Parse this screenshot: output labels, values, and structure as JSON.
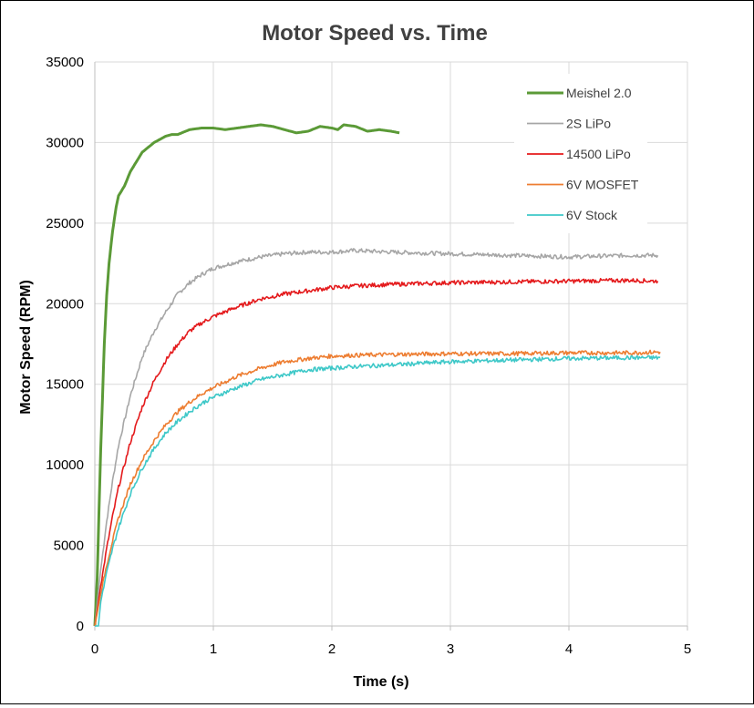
{
  "chart_data": {
    "type": "line",
    "title": "Motor Speed vs. Time",
    "xlabel": "Time (s)",
    "ylabel": "Motor Speed (RPM)",
    "xlim": [
      0,
      5
    ],
    "ylim": [
      0,
      35000
    ],
    "xticks": [
      0,
      1,
      2,
      3,
      4,
      5
    ],
    "yticks": [
      0,
      5000,
      10000,
      15000,
      20000,
      25000,
      30000,
      35000
    ],
    "grid": true,
    "legend_position": "top-right",
    "series": [
      {
        "name": "Meishel 2.0",
        "color": "#5b9a37",
        "x": [
          0,
          0.02,
          0.05,
          0.08,
          0.1,
          0.12,
          0.15,
          0.18,
          0.2,
          0.25,
          0.3,
          0.4,
          0.5,
          0.6,
          0.65,
          0.7,
          0.8,
          0.9,
          1.0,
          1.1,
          1.2,
          1.3,
          1.4,
          1.5,
          1.6,
          1.7,
          1.8,
          1.9,
          2.0,
          2.05,
          2.1,
          2.2,
          2.3,
          2.4,
          2.5,
          2.57
        ],
        "y": [
          0,
          3000,
          11000,
          17500,
          20500,
          22500,
          24500,
          26000,
          26700,
          27300,
          28200,
          29400,
          30000,
          30400,
          30500,
          30500,
          30800,
          30900,
          30900,
          30800,
          30900,
          31000,
          31100,
          31000,
          30800,
          30600,
          30700,
          31000,
          30900,
          30800,
          31100,
          31000,
          30700,
          30800,
          30700,
          30600
        ]
      },
      {
        "name": "2S LiPo",
        "color": "#a6a6a6",
        "x": [
          0,
          0.05,
          0.1,
          0.15,
          0.2,
          0.3,
          0.4,
          0.5,
          0.6,
          0.7,
          0.8,
          0.9,
          1.0,
          1.2,
          1.4,
          1.6,
          1.8,
          2.0,
          2.2,
          2.5,
          3.0,
          3.5,
          4.0,
          4.5,
          4.75
        ],
        "y": [
          0,
          3500,
          6500,
          9000,
          11200,
          14300,
          16700,
          18300,
          19500,
          20600,
          21300,
          21800,
          22200,
          22600,
          22900,
          23100,
          23200,
          23200,
          23300,
          23200,
          23100,
          23000,
          22900,
          23000,
          23000
        ]
      },
      {
        "name": "14500 LiPo",
        "color": "#e41a1c",
        "x": [
          0,
          0.05,
          0.1,
          0.15,
          0.2,
          0.3,
          0.4,
          0.5,
          0.6,
          0.7,
          0.8,
          0.9,
          1.0,
          1.2,
          1.4,
          1.6,
          1.8,
          2.0,
          2.2,
          2.5,
          3.0,
          3.5,
          4.0,
          4.5,
          4.75
        ],
        "y": [
          0,
          2500,
          4800,
          6800,
          8600,
          11400,
          13600,
          15200,
          16500,
          17500,
          18300,
          18800,
          19200,
          19800,
          20300,
          20600,
          20800,
          21000,
          21100,
          21200,
          21300,
          21350,
          21400,
          21450,
          21400
        ]
      },
      {
        "name": "6V MOSFET",
        "color": "#ed7d31",
        "x": [
          0,
          0.05,
          0.1,
          0.15,
          0.2,
          0.3,
          0.4,
          0.5,
          0.6,
          0.7,
          0.8,
          0.9,
          1.0,
          1.2,
          1.4,
          1.6,
          1.8,
          2.0,
          2.2,
          2.5,
          3.0,
          3.5,
          4.0,
          4.5,
          4.77
        ],
        "y": [
          0,
          2000,
          3800,
          5300,
          6700,
          8800,
          10300,
          11500,
          12500,
          13300,
          13900,
          14400,
          14800,
          15500,
          16000,
          16400,
          16600,
          16750,
          16800,
          16850,
          16900,
          16900,
          16950,
          16950,
          17000
        ]
      },
      {
        "name": "6V Stock",
        "color": "#3ec8c8",
        "x": [
          0,
          0.03,
          0.05,
          0.1,
          0.15,
          0.2,
          0.3,
          0.4,
          0.5,
          0.6,
          0.7,
          0.8,
          0.9,
          1.0,
          1.2,
          1.4,
          1.6,
          1.8,
          2.0,
          2.2,
          2.5,
          3.0,
          3.5,
          4.0,
          4.5,
          4.77
        ],
        "y": [
          0,
          0,
          1500,
          3300,
          4800,
          6100,
          8200,
          9800,
          11000,
          12000,
          12700,
          13300,
          13800,
          14200,
          14800,
          15300,
          15600,
          15900,
          16000,
          16100,
          16200,
          16400,
          16500,
          16600,
          16650,
          16650
        ]
      }
    ]
  }
}
